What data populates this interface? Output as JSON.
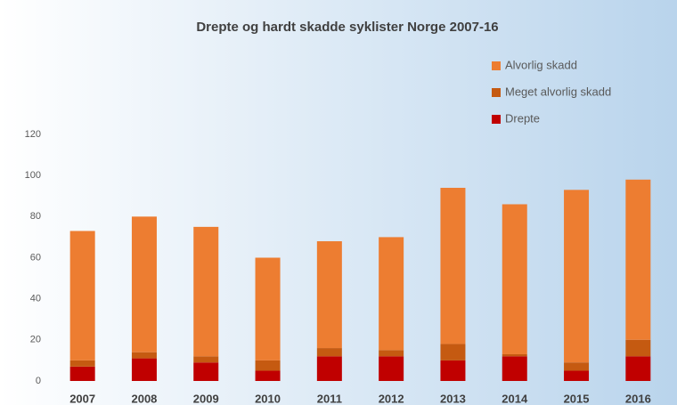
{
  "chart_data": {
    "type": "stacked_bar",
    "title": "Drepte og hardt skadde syklister Norge 2007-16",
    "categories": [
      "2007",
      "2008",
      "2009",
      "2010",
      "2011",
      "2012",
      "2013",
      "2014",
      "2015",
      "2016"
    ],
    "series": [
      {
        "name": "Drepte",
        "color": "#c00000",
        "values": [
          7,
          11,
          9,
          5,
          12,
          12,
          10,
          12,
          5,
          12
        ]
      },
      {
        "name": "Meget alvorlig skadd",
        "color": "#c55a11",
        "values": [
          3,
          3,
          3,
          5,
          4,
          3,
          8,
          1,
          4,
          8
        ]
      },
      {
        "name": "Alvorlig skadd",
        "color": "#ed7d31",
        "values": [
          63,
          66,
          63,
          50,
          52,
          55,
          76,
          73,
          84,
          78
        ]
      }
    ],
    "ylim": [
      0,
      120
    ],
    "yticks": [
      0,
      20,
      40,
      60,
      80,
      100,
      120
    ],
    "grid": false
  }
}
